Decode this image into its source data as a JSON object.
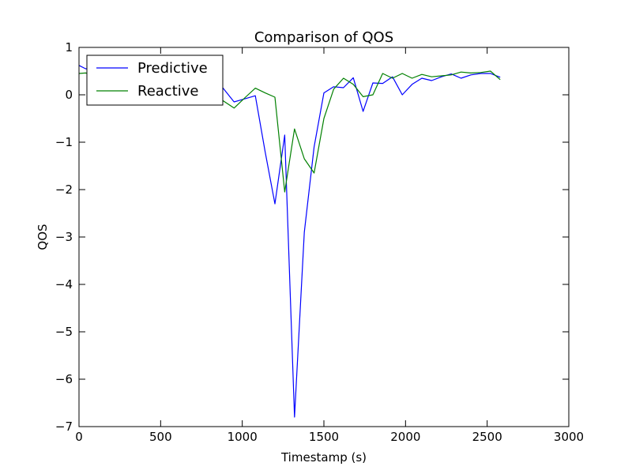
{
  "chart_data": {
    "type": "line",
    "title": "Comparison of QOS",
    "xlabel": "Timestamp (s)",
    "ylabel": "QOS",
    "xlim": [
      0,
      3000
    ],
    "ylim": [
      -7,
      1
    ],
    "xticks": [
      0,
      500,
      1000,
      1500,
      2000,
      2500,
      3000
    ],
    "xtick_labels": [
      "0",
      "500",
      "1000",
      "1500",
      "2000",
      "2500",
      "3000"
    ],
    "yticks": [
      1,
      0,
      -1,
      -2,
      -3,
      -4,
      -5,
      -6,
      -7
    ],
    "ytick_labels": [
      "1",
      "0",
      "−1",
      "−2",
      "−3",
      "−4",
      "−5",
      "−6",
      "−7"
    ],
    "grid": false,
    "legend_position": "top-left",
    "series": [
      {
        "name": "Predictive",
        "color": "#0000ff",
        "x": [
          0,
          40,
          850,
          880,
          950,
          1020,
          1080,
          1140,
          1200,
          1260,
          1320,
          1380,
          1440,
          1500,
          1560,
          1620,
          1680,
          1740,
          1800,
          1860,
          1920,
          1980,
          2040,
          2100,
          2160,
          2220,
          2280,
          2340,
          2400,
          2460,
          2520,
          2580
        ],
        "y": [
          0.62,
          0.55,
          0.25,
          0.15,
          -0.15,
          -0.08,
          -0.02,
          -1.2,
          -2.3,
          -0.85,
          -6.8,
          -2.9,
          -1.1,
          0.04,
          0.17,
          0.15,
          0.36,
          -0.35,
          0.25,
          0.24,
          0.38,
          0.0,
          0.22,
          0.35,
          0.3,
          0.38,
          0.44,
          0.35,
          0.42,
          0.45,
          0.45,
          0.37
        ]
      },
      {
        "name": "Reactive",
        "color": "#008000",
        "x": [
          0,
          40,
          850,
          880,
          950,
          1020,
          1080,
          1140,
          1200,
          1260,
          1320,
          1380,
          1440,
          1500,
          1560,
          1620,
          1680,
          1740,
          1800,
          1860,
          1920,
          1980,
          2040,
          2100,
          2160,
          2220,
          2280,
          2340,
          2400,
          2460,
          2520,
          2580
        ],
        "y": [
          0.45,
          0.46,
          -0.05,
          -0.12,
          -0.28,
          -0.05,
          0.14,
          0.04,
          -0.05,
          -2.05,
          -0.72,
          -1.35,
          -1.65,
          -0.5,
          0.12,
          0.35,
          0.22,
          -0.04,
          0.0,
          0.45,
          0.35,
          0.45,
          0.35,
          0.43,
          0.38,
          0.4,
          0.42,
          0.48,
          0.46,
          0.47,
          0.5,
          0.32
        ]
      }
    ]
  }
}
